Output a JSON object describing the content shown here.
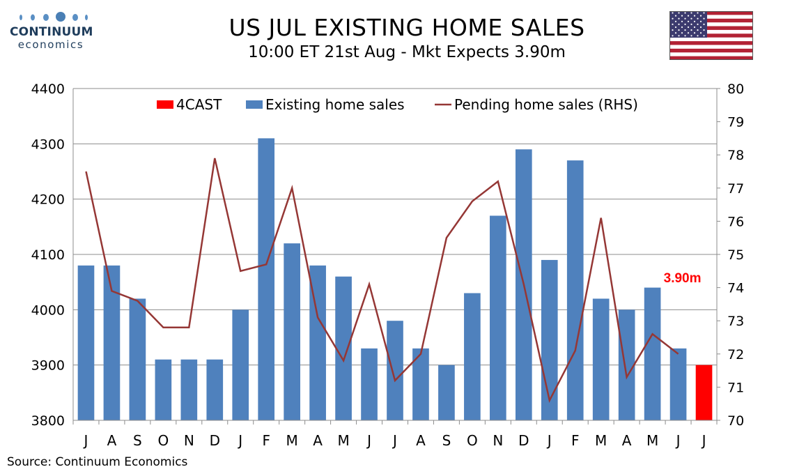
{
  "header": {
    "title": "US JUL EXISTING HOME SALES",
    "subtitle": "10:00 ET 21st Aug - Mkt Expects 3.90m"
  },
  "logo": {
    "name": "CONTINUUM",
    "sub": "economics",
    "color": "#1f3d5c"
  },
  "flag": {
    "country": "US"
  },
  "footer": {
    "source": "Source: Continuum Economics"
  },
  "chart_data": {
    "type": "bar",
    "categories": [
      "J",
      "A",
      "S",
      "O",
      "N",
      "D",
      "J",
      "F",
      "M",
      "A",
      "M",
      "J",
      "J",
      "A",
      "S",
      "O",
      "N",
      "D",
      "J",
      "F",
      "M",
      "A",
      "M",
      "J",
      "J"
    ],
    "series": [
      {
        "name": "Existing home sales",
        "type": "bar",
        "axis": "left",
        "color": "#4f81bd",
        "values": [
          4080,
          4080,
          4020,
          3910,
          3910,
          3910,
          4000,
          4310,
          4120,
          4080,
          4060,
          3930,
          3980,
          3930,
          3900,
          4030,
          4170,
          4290,
          4090,
          4270,
          4020,
          4000,
          4040,
          3930,
          null
        ]
      },
      {
        "name": "4CAST",
        "type": "bar",
        "axis": "left",
        "color": "#ff0000",
        "values": [
          null,
          null,
          null,
          null,
          null,
          null,
          null,
          null,
          null,
          null,
          null,
          null,
          null,
          null,
          null,
          null,
          null,
          null,
          null,
          null,
          null,
          null,
          null,
          null,
          3900
        ]
      },
      {
        "name": "Pending home sales (RHS)",
        "type": "line",
        "axis": "right",
        "color": "#953735",
        "values": [
          77.5,
          73.9,
          73.6,
          72.8,
          72.8,
          77.9,
          74.5,
          74.7,
          77.0,
          73.1,
          71.8,
          74.1,
          71.2,
          72.0,
          75.5,
          76.6,
          77.2,
          74.1,
          70.6,
          72.1,
          76.1,
          71.3,
          72.6,
          72.0,
          null
        ]
      }
    ],
    "legend_order": [
      "4CAST",
      "Existing home sales",
      "Pending home sales (RHS)"
    ],
    "legend_position": "top",
    "ylim": [
      3800,
      4400
    ],
    "yticks": [
      3800,
      3900,
      4000,
      4100,
      4200,
      4300,
      4400
    ],
    "y2lim": [
      70,
      80
    ],
    "y2ticks": [
      70,
      71,
      72,
      73,
      74,
      75,
      76,
      77,
      78,
      79,
      80
    ],
    "grid": "horizontal",
    "annotation": {
      "text": "3.90m",
      "color": "#ff0000"
    }
  }
}
